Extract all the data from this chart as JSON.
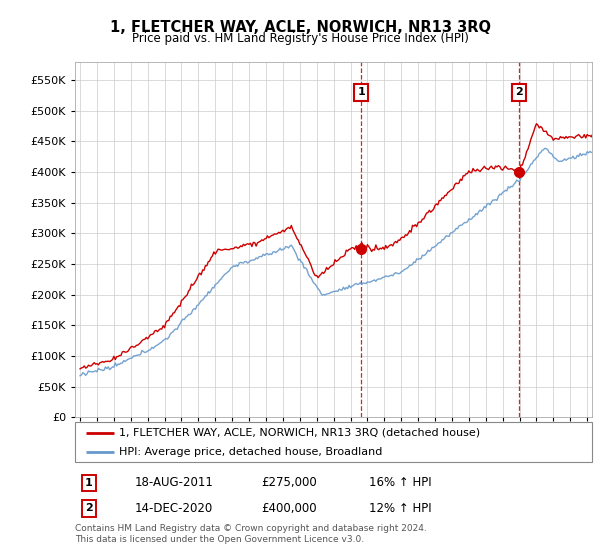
{
  "title": "1, FLETCHER WAY, ACLE, NORWICH, NR13 3RQ",
  "subtitle": "Price paid vs. HM Land Registry's House Price Index (HPI)",
  "legend_line1": "1, FLETCHER WAY, ACLE, NORWICH, NR13 3RQ (detached house)",
  "legend_line2": "HPI: Average price, detached house, Broadland",
  "annotation1_date": "18-AUG-2011",
  "annotation1_price": "£275,000",
  "annotation1_hpi": "16% ↑ HPI",
  "annotation1_year": 2011.63,
  "annotation1_value": 275000,
  "annotation2_date": "14-DEC-2020",
  "annotation2_price": "£400,000",
  "annotation2_hpi": "12% ↑ HPI",
  "annotation2_year": 2020.96,
  "annotation2_value": 400000,
  "footer1": "Contains HM Land Registry data © Crown copyright and database right 2024.",
  "footer2": "This data is licensed under the Open Government Licence v3.0.",
  "red_color": "#cc0000",
  "blue_color": "#6699cc",
  "background_color": "#ffffff",
  "grid_color": "#cccccc",
  "ylim_max": 580000,
  "xlim_start": 1994.7,
  "xlim_end": 2025.3
}
